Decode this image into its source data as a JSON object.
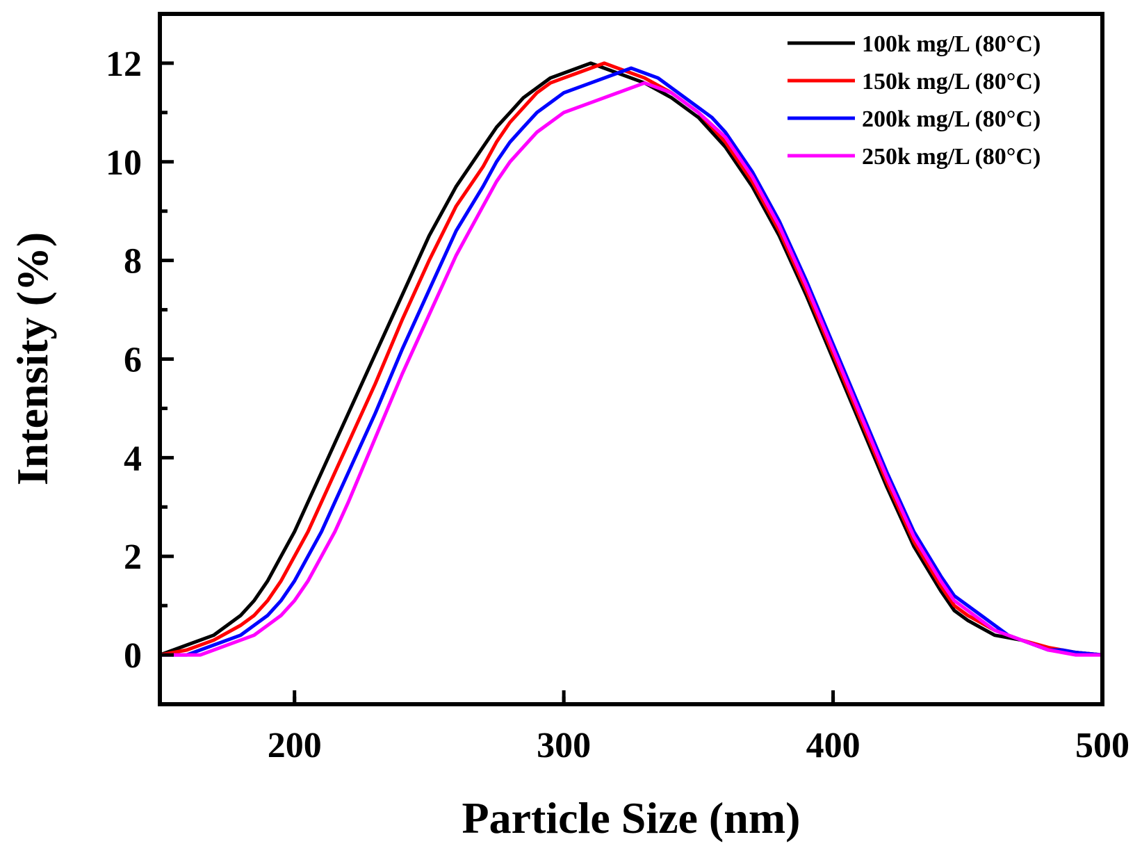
{
  "chart_data": {
    "type": "line",
    "title": "",
    "xlabel": "Particle Size (nm)",
    "ylabel": "Intensity (%)",
    "xlim": [
      150,
      500
    ],
    "ylim": [
      -1,
      13
    ],
    "xticks": [
      200,
      300,
      400,
      500
    ],
    "yticks": [
      0,
      2,
      4,
      6,
      8,
      10,
      12
    ],
    "xtick_labels": [
      "200",
      "300",
      "400",
      "500"
    ],
    "ytick_labels": [
      "0",
      "2",
      "4",
      "6",
      "8",
      "10",
      "12"
    ],
    "grid": false,
    "legend_position": "top-right",
    "series": [
      {
        "name": "100k mg/L (80°C)",
        "color": "#000000",
        "x": [
          150,
          160,
          170,
          180,
          185,
          190,
          195,
          200,
          205,
          210,
          215,
          220,
          230,
          240,
          250,
          260,
          270,
          275,
          280,
          285,
          290,
          295,
          300,
          305,
          310,
          320,
          330,
          340,
          350,
          360,
          370,
          380,
          390,
          400,
          410,
          420,
          430,
          440,
          445,
          450,
          460,
          470,
          480,
          490,
          500
        ],
        "values": [
          0,
          0.2,
          0.4,
          0.8,
          1.1,
          1.5,
          2.0,
          2.5,
          3.1,
          3.7,
          4.3,
          4.9,
          6.1,
          7.3,
          8.5,
          9.5,
          10.3,
          10.7,
          11.0,
          11.3,
          11.5,
          11.7,
          11.8,
          11.9,
          12.0,
          11.8,
          11.6,
          11.3,
          10.9,
          10.3,
          9.5,
          8.5,
          7.3,
          6.0,
          4.7,
          3.4,
          2.2,
          1.3,
          0.9,
          0.7,
          0.4,
          0.3,
          0.1,
          0.05,
          0
        ]
      },
      {
        "name": "150k mg/L (80°C)",
        "color": "#ff0000",
        "x": [
          150,
          160,
          170,
          180,
          185,
          190,
          195,
          200,
          205,
          210,
          215,
          220,
          230,
          240,
          250,
          260,
          270,
          275,
          280,
          285,
          290,
          295,
          300,
          305,
          310,
          315,
          320,
          330,
          340,
          350,
          360,
          370,
          380,
          390,
          400,
          410,
          420,
          430,
          440,
          445,
          450,
          460,
          470,
          480,
          490,
          500
        ],
        "values": [
          0,
          0.1,
          0.3,
          0.6,
          0.8,
          1.1,
          1.5,
          2.0,
          2.5,
          3.1,
          3.7,
          4.3,
          5.5,
          6.8,
          8.0,
          9.1,
          9.9,
          10.4,
          10.8,
          11.1,
          11.4,
          11.6,
          11.7,
          11.8,
          11.9,
          12.0,
          11.9,
          11.7,
          11.4,
          11.0,
          10.4,
          9.6,
          8.6,
          7.4,
          6.1,
          4.8,
          3.5,
          2.3,
          1.4,
          1.0,
          0.8,
          0.5,
          0.3,
          0.15,
          0.05,
          0
        ]
      },
      {
        "name": "200k mg/L (80°C)",
        "color": "#0000ff",
        "x": [
          150,
          160,
          170,
          180,
          185,
          190,
          195,
          200,
          205,
          210,
          215,
          220,
          230,
          240,
          250,
          260,
          270,
          275,
          280,
          285,
          290,
          295,
          300,
          310,
          320,
          325,
          330,
          335,
          340,
          350,
          355,
          360,
          370,
          380,
          390,
          400,
          410,
          420,
          430,
          440,
          445,
          450,
          455,
          465,
          475,
          480,
          485,
          490,
          500
        ],
        "values": [
          0,
          0,
          0.2,
          0.4,
          0.6,
          0.8,
          1.1,
          1.5,
          2.0,
          2.5,
          3.1,
          3.7,
          4.9,
          6.2,
          7.4,
          8.6,
          9.5,
          10.0,
          10.4,
          10.7,
          11.0,
          11.2,
          11.4,
          11.6,
          11.8,
          11.9,
          11.8,
          11.7,
          11.5,
          11.1,
          10.9,
          10.6,
          9.8,
          8.8,
          7.6,
          6.3,
          5.0,
          3.7,
          2.5,
          1.6,
          1.2,
          1.0,
          0.8,
          0.4,
          0.2,
          0.1,
          0.1,
          0.05,
          0
        ]
      },
      {
        "name": "250k mg/L (80°C)",
        "color": "#ff00ff",
        "x": [
          150,
          160,
          165,
          170,
          180,
          185,
          190,
          195,
          200,
          205,
          210,
          215,
          220,
          230,
          240,
          250,
          260,
          265,
          270,
          275,
          280,
          285,
          290,
          295,
          300,
          310,
          320,
          330,
          340,
          350,
          360,
          370,
          380,
          390,
          400,
          410,
          420,
          430,
          440,
          445,
          450,
          460,
          470,
          480,
          485,
          490,
          500
        ],
        "values": [
          0,
          0,
          0,
          0.1,
          0.3,
          0.4,
          0.6,
          0.8,
          1.1,
          1.5,
          2.0,
          2.5,
          3.1,
          4.4,
          5.7,
          6.9,
          8.1,
          8.6,
          9.1,
          9.6,
          10.0,
          10.3,
          10.6,
          10.8,
          11.0,
          11.2,
          11.4,
          11.6,
          11.4,
          11.0,
          10.5,
          9.7,
          8.7,
          7.5,
          6.2,
          4.9,
          3.6,
          2.4,
          1.5,
          1.1,
          0.9,
          0.5,
          0.3,
          0.1,
          0.05,
          0,
          0
        ]
      }
    ]
  }
}
